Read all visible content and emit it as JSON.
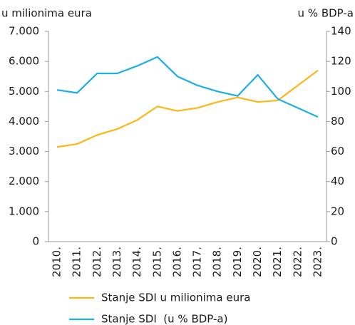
{
  "chart_data": {
    "type": "line",
    "y_label": "u milionima eura",
    "y2_label": "u % BDP-a",
    "categories": [
      "2010.",
      "2011.",
      "2012.",
      "2013.",
      "2014.",
      "2015.",
      "2016.",
      "2017.",
      "2018.",
      "2019.",
      "2020.",
      "2021.",
      "2022.",
      "2023."
    ],
    "series": [
      {
        "name": "Stanje SDI u milionima eura",
        "color": "#fbb814",
        "axis": "y",
        "values": [
          3150,
          3250,
          3550,
          3750,
          4050,
          4500,
          4350,
          4450,
          4650,
          4800,
          4650,
          4700,
          5200,
          5700
        ]
      },
      {
        "name": "Stanje SDI  (u % BDP-a)",
        "color": "#1ab0e6",
        "axis": "y2",
        "values": [
          101,
          99,
          112,
          112,
          117,
          123,
          110,
          104,
          100,
          97,
          111,
          95,
          89,
          83
        ]
      }
    ],
    "ylim": [
      0,
      7000
    ],
    "yticks": [
      0,
      {
        "value": 1000,
        "label": "1.000"
      },
      {
        "value": 2000,
        "label": "2.000"
      },
      {
        "value": 3000,
        "label": "3.000"
      },
      {
        "value": 4000,
        "label": "4.000"
      },
      {
        "value": 5000,
        "label": "5.000"
      },
      {
        "value": 6000,
        "label": "6.000"
      },
      {
        "value": 7000,
        "label": "7.000"
      }
    ],
    "y2lim": [
      0,
      140
    ],
    "y2ticks": [
      0,
      20,
      40,
      60,
      80,
      100,
      120,
      140
    ],
    "grid": false,
    "legend": "bottom"
  }
}
